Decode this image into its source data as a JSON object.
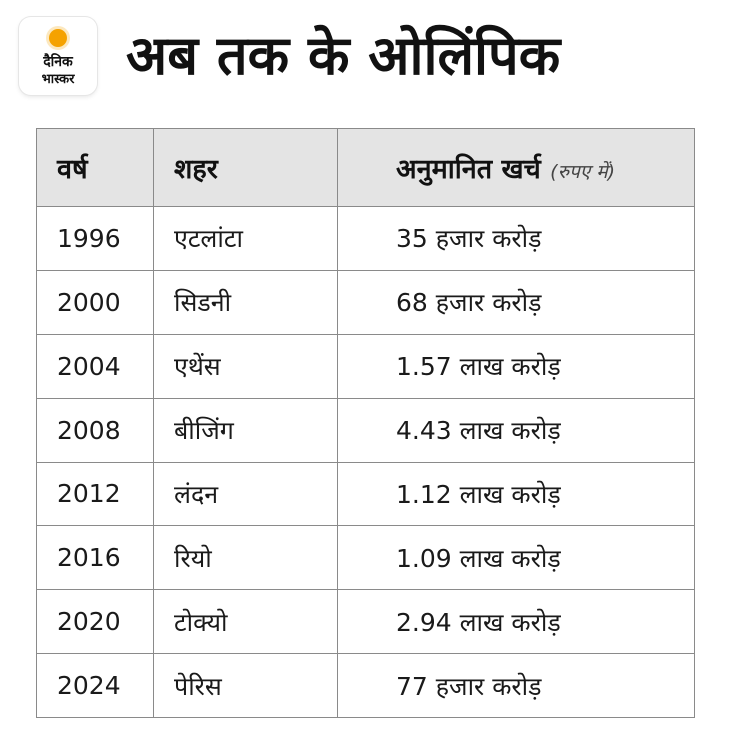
{
  "brand": {
    "line1": "दैनिक",
    "line2": "भास्कर"
  },
  "title": "अब तक के ओलिंपिक",
  "table": {
    "headers": {
      "year": "वर्ष",
      "city": "शहर",
      "cost": "अनुमानित खर्च",
      "cost_unit": "(रुपए में)"
    },
    "rows": [
      {
        "year": "1996",
        "city": "एटलांटा",
        "cost": "35 हजार करोड़"
      },
      {
        "year": "2000",
        "city": "सिडनी",
        "cost": "68 हजार करोड़"
      },
      {
        "year": "2004",
        "city": "एथेंस",
        "cost": "1.57 लाख करोड़"
      },
      {
        "year": "2008",
        "city": "बीजिंग",
        "cost": "4.43 लाख करोड़"
      },
      {
        "year": "2012",
        "city": "लंदन",
        "cost": "1.12 लाख करोड़"
      },
      {
        "year": "2016",
        "city": "रियो",
        "cost": "1.09 लाख करोड़"
      },
      {
        "year": "2020",
        "city": "टोक्यो",
        "cost": "2.94 लाख करोड़"
      },
      {
        "year": "2024",
        "city": "पेरिस",
        "cost": "77 हजार करोड़"
      }
    ]
  },
  "colors": {
    "header_bg": "#e4e4e4",
    "border": "#8a8a8a",
    "logo_sun": "#f5a200"
  }
}
